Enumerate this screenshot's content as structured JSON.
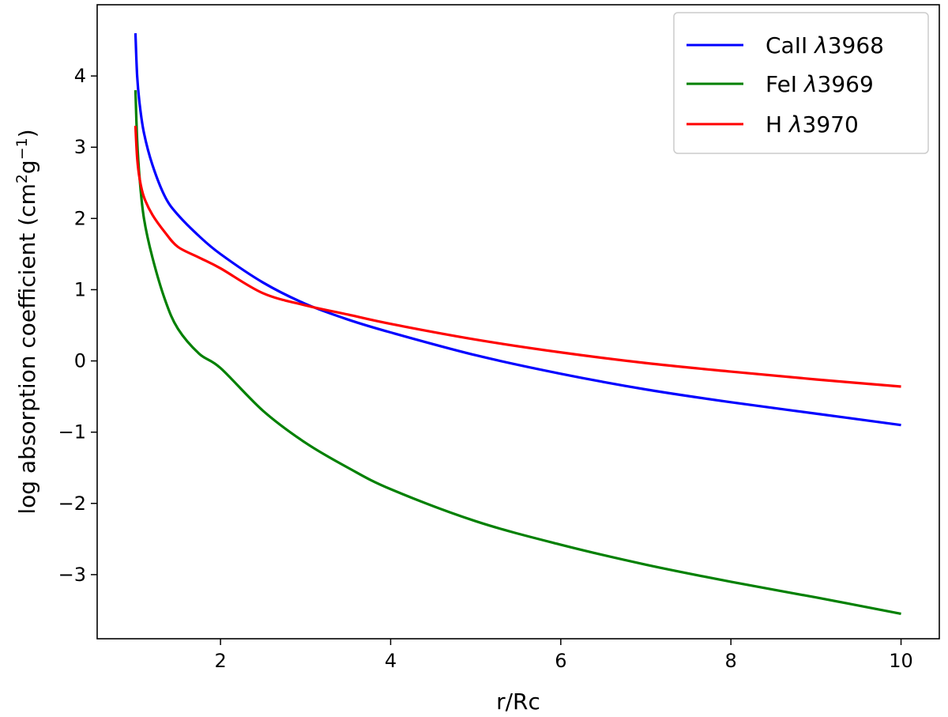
{
  "chart_data": {
    "type": "line",
    "title": "",
    "xlabel": "r/Rc",
    "ylabel": "log absorption coefficient (cm²g⁻¹)",
    "ylabel_parts": {
      "prefix": "log absorption coefficient (cm",
      "exp1": "2",
      "mid": "g",
      "exp2": "−1",
      "suffix": ")"
    },
    "xlim": [
      0.55,
      10.45
    ],
    "ylim": [
      -3.9,
      5.0
    ],
    "xticks": [
      2,
      4,
      6,
      8,
      10
    ],
    "yticks": [
      -3,
      -2,
      -1,
      0,
      1,
      2,
      3,
      4
    ],
    "grid": false,
    "legend_position": "top-right",
    "series": [
      {
        "name": "CaII λ3968",
        "label_prefix": "CaII ",
        "label_symbol": "λ",
        "label_suffix": "3968",
        "color": "#0000ff",
        "x": [
          1.0,
          1.02,
          1.05,
          1.1,
          1.2,
          1.35,
          1.5,
          1.75,
          2.0,
          2.5,
          3.0,
          3.5,
          4.0,
          5.0,
          6.0,
          7.0,
          8.0,
          9.0,
          10.0
        ],
        "y": [
          4.6,
          4.0,
          3.6,
          3.2,
          2.75,
          2.3,
          2.05,
          1.75,
          1.5,
          1.1,
          0.8,
          0.58,
          0.4,
          0.08,
          -0.18,
          -0.4,
          -0.58,
          -0.74,
          -0.9
        ]
      },
      {
        "name": "FeI λ3969",
        "label_prefix": "FeI ",
        "label_symbol": "λ",
        "label_suffix": "3969",
        "color": "#008000",
        "x": [
          1.0,
          1.02,
          1.05,
          1.1,
          1.2,
          1.35,
          1.5,
          1.75,
          2.0,
          2.5,
          3.0,
          3.5,
          4.0,
          5.0,
          6.0,
          7.0,
          8.0,
          9.0,
          10.0
        ],
        "y": [
          3.8,
          3.1,
          2.55,
          2.0,
          1.45,
          0.85,
          0.45,
          0.1,
          -0.1,
          -0.7,
          -1.15,
          -1.5,
          -1.8,
          -2.25,
          -2.58,
          -2.86,
          -3.1,
          -3.32,
          -3.55
        ]
      },
      {
        "name": "H λ3970",
        "label_prefix": "H ",
        "label_symbol": "λ",
        "label_suffix": "3970",
        "color": "#ff0000",
        "x": [
          1.0,
          1.02,
          1.05,
          1.1,
          1.2,
          1.35,
          1.5,
          1.75,
          2.0,
          2.5,
          3.0,
          3.5,
          4.0,
          5.0,
          6.0,
          7.0,
          8.0,
          9.0,
          10.0
        ],
        "y": [
          3.3,
          2.85,
          2.55,
          2.3,
          2.05,
          1.8,
          1.6,
          1.45,
          1.3,
          0.95,
          0.78,
          0.65,
          0.52,
          0.3,
          0.12,
          -0.03,
          -0.15,
          -0.26,
          -0.36
        ]
      }
    ]
  }
}
